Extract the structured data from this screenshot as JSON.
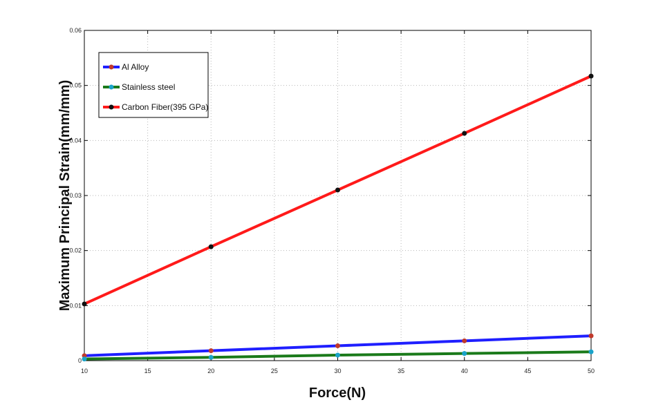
{
  "chart_data": {
    "type": "line",
    "title": "",
    "xlabel": "Force(N)",
    "ylabel": "Maximum Principal Strain(mm/mm)",
    "xlim": [
      10,
      50
    ],
    "ylim": [
      0,
      0.06
    ],
    "xticks": [
      "10",
      "15",
      "20",
      "25",
      "30",
      "35",
      "40",
      "45",
      "50"
    ],
    "yticks": [
      "0",
      "0.01",
      "0.02",
      "0.03",
      "0.04",
      "0.05",
      "0.06"
    ],
    "grid": true,
    "legend_position": "top-left",
    "x": [
      10,
      20,
      30,
      40,
      50
    ],
    "series": [
      {
        "name": "Al Alloy",
        "color": "#1f1fff",
        "marker_color": "#c0392b",
        "values": [
          0.0009,
          0.0018,
          0.0027,
          0.0036,
          0.0045
        ]
      },
      {
        "name": "Stainless steel",
        "color": "#1a7a1a",
        "marker_color": "#1aa3c9",
        "values": [
          0.0003,
          0.0006,
          0.001,
          0.0013,
          0.0016
        ]
      },
      {
        "name": "Carbon Fiber(395 GPa)",
        "color": "#ff1a1a",
        "marker_color": "#111111",
        "values": [
          0.0103,
          0.0207,
          0.031,
          0.0413,
          0.0517
        ]
      }
    ]
  }
}
